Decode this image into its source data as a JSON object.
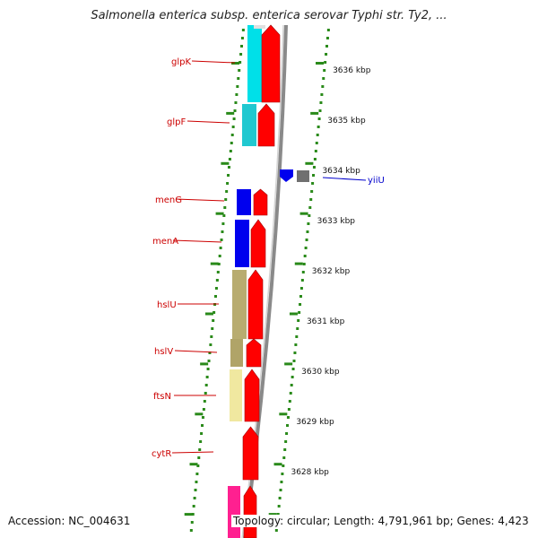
{
  "header": {
    "title": "Salmonella enterica subsp. enterica serovar Typhi str. Ty2, ..."
  },
  "footer": {
    "accession": "Accession: NC_004631",
    "summary": "Topology: circular; Length: 4,791,961 bp; Genes: 4,423"
  },
  "colors": {
    "gene_label": "#cc0000",
    "gene_label_minus": "#0000cc",
    "cds_arrow": "#ff0000",
    "tick": "#2a8a1a",
    "backbone": "#8a8a8a"
  },
  "ruler": {
    "unit": "kbp",
    "labels": [
      "3636 kbp",
      "3635 kbp",
      "3634 kbp",
      "3633 kbp",
      "3632 kbp",
      "3631 kbp",
      "3630 kbp",
      "3629 kbp",
      "3628 kbp"
    ]
  },
  "genes": [
    {
      "name": "glpK",
      "strand": "+",
      "color": "#00e0e8"
    },
    {
      "name": "glpF",
      "strand": "+",
      "color": "#20c8d0"
    },
    {
      "name": "menG",
      "strand": "+",
      "color": "#0000ee"
    },
    {
      "name": "menA",
      "strand": "+",
      "color": "#0000ee"
    },
    {
      "name": "hslU",
      "strand": "+",
      "color": "#b8ac70"
    },
    {
      "name": "hslV",
      "strand": "+",
      "color": "#b0a468"
    },
    {
      "name": "ftsN",
      "strand": "+",
      "color": "#f0e8a0"
    },
    {
      "name": "cytR",
      "strand": "+",
      "color": null
    },
    {
      "name": "yiiU",
      "strand": "-",
      "color": "#0000ee"
    }
  ]
}
